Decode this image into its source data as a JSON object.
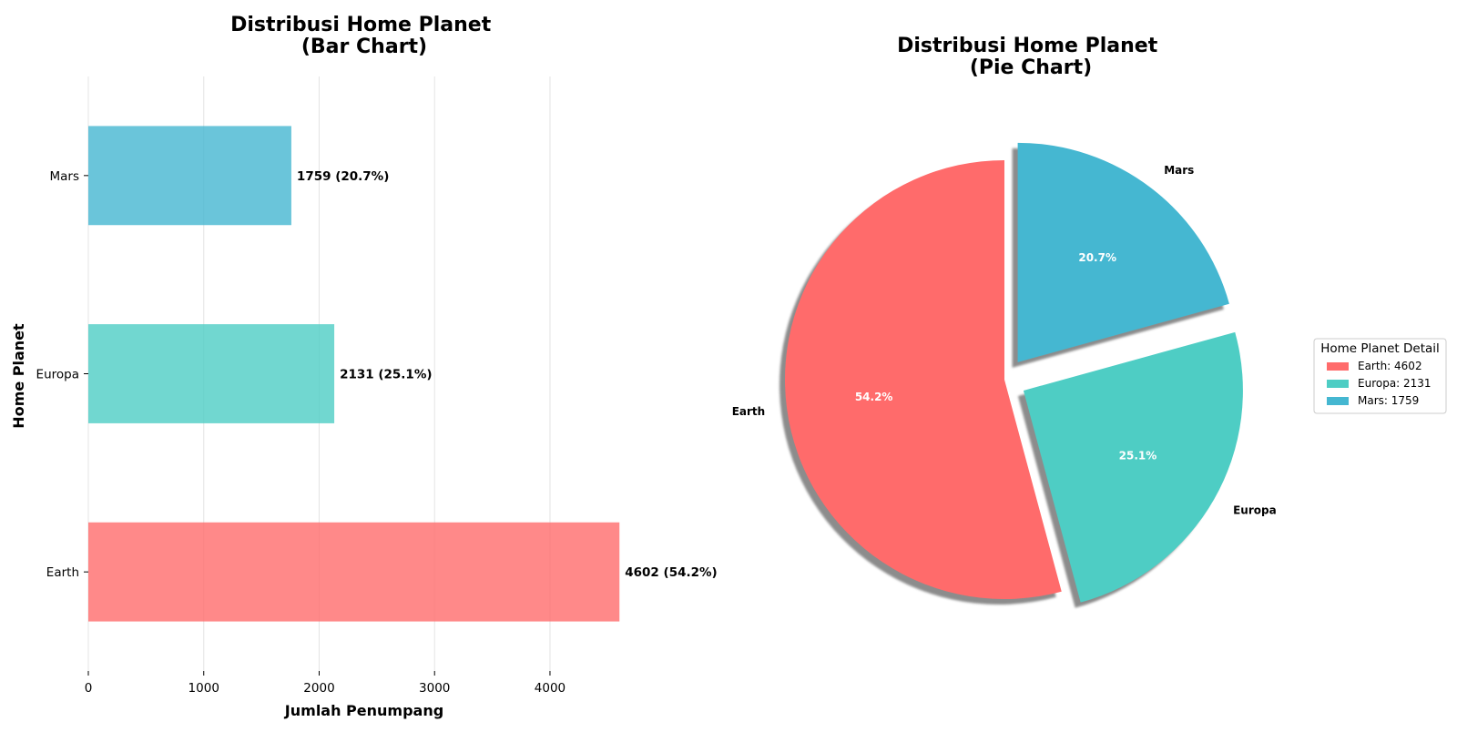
{
  "colors": {
    "Earth": "#FF6B6B",
    "Europa": "#4ECDC4",
    "Mars": "#45B7D1"
  },
  "chart_data": [
    {
      "type": "bar",
      "orientation": "horizontal",
      "title": "Distribusi Home Planet\n(Bar Chart)",
      "xlabel": "Jumlah Penumpang",
      "ylabel": "Home Planet",
      "categories": [
        "Earth",
        "Europa",
        "Mars"
      ],
      "values": [
        4602,
        2131,
        1759
      ],
      "data_labels": [
        "4602 (54.2%)",
        "2131 (25.1%)",
        "1759 (20.7%)"
      ],
      "xlim": [
        0,
        4600
      ],
      "xticks": [
        "0",
        "1000",
        "2000",
        "3000",
        "4000"
      ],
      "grid": "x",
      "bar_alpha": 0.8
    },
    {
      "type": "pie",
      "title": "Distribusi Home Planet\n(Pie Chart)",
      "labels": [
        "Earth",
        "Europa",
        "Mars"
      ],
      "values": [
        4602,
        2131,
        1759
      ],
      "percent_labels": [
        "54.2%",
        "25.1%",
        "20.7%"
      ],
      "explode": [
        0,
        0.1,
        0.1
      ],
      "start_angle": 90,
      "shadow": true,
      "legend": {
        "title": "Home Planet Detail",
        "placement": "right",
        "entries": [
          "Earth: 4602",
          "Europa: 2131",
          "Mars: 1759"
        ]
      }
    }
  ]
}
